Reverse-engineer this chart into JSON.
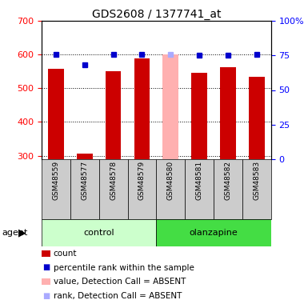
{
  "title": "GDS2608 / 1377741_at",
  "samples": [
    "GSM48559",
    "GSM48577",
    "GSM48578",
    "GSM48579",
    "GSM48580",
    "GSM48581",
    "GSM48582",
    "GSM48583"
  ],
  "count_values": [
    557,
    305,
    550,
    590,
    null,
    545,
    562,
    535
  ],
  "count_absent": [
    null,
    null,
    null,
    null,
    600,
    null,
    null,
    null
  ],
  "rank_values": [
    76,
    68,
    76,
    76,
    null,
    75,
    75,
    76
  ],
  "rank_absent": [
    null,
    null,
    null,
    null,
    76,
    null,
    null,
    null
  ],
  "ylim_left": [
    290,
    700
  ],
  "ylim_right": [
    0,
    100
  ],
  "yticks_left": [
    300,
    400,
    500,
    600,
    700
  ],
  "yticks_right": [
    0,
    25,
    50,
    75,
    100
  ],
  "groups": {
    "control": [
      0,
      1,
      2,
      3
    ],
    "olanzapine": [
      4,
      5,
      6,
      7
    ]
  },
  "bar_color": "#cc0000",
  "bar_absent_color": "#ffb0b0",
  "rank_color": "#0000cc",
  "rank_absent_color": "#aaaaff",
  "control_bg": "#ccffcc",
  "olanzapine_bg": "#44dd44",
  "sample_bg": "#cccccc",
  "figsize": [
    3.85,
    3.75
  ],
  "dpi": 100
}
